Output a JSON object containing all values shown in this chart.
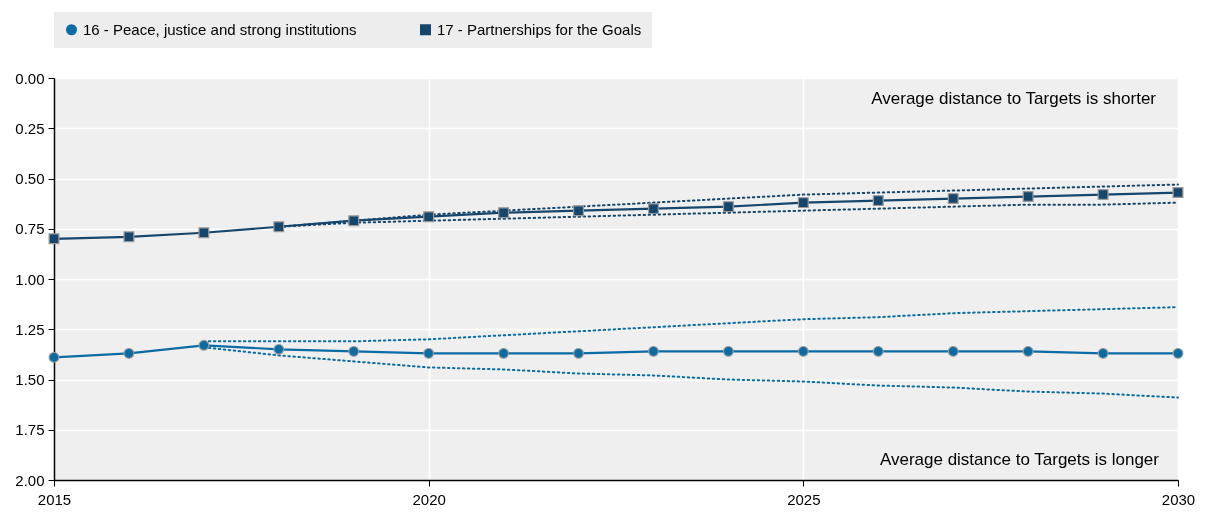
{
  "chart_data": {
    "type": "line",
    "x": [
      2015,
      2016,
      2017,
      2018,
      2019,
      2020,
      2021,
      2022,
      2023,
      2024,
      2025,
      2026,
      2027,
      2028,
      2029,
      2030
    ],
    "series": [
      {
        "name": "16 - Peace, justice and strong institutions",
        "color": "#0b6ba3",
        "marker": "circle",
        "values": [
          1.39,
          1.37,
          1.33,
          1.35,
          1.36,
          1.37,
          1.37,
          1.37,
          1.36,
          1.36,
          1.36,
          1.36,
          1.36,
          1.36,
          1.37,
          1.37
        ]
      },
      {
        "name": "17 - Partnerships for the Goals",
        "color": "#17466d",
        "marker": "square",
        "values": [
          0.8,
          0.79,
          0.77,
          0.74,
          0.71,
          0.69,
          0.67,
          0.66,
          0.65,
          0.64,
          0.62,
          0.61,
          0.6,
          0.59,
          0.58,
          0.57
        ]
      },
      {
        "color": "#0b6ba3",
        "line_style": "dotted",
        "values": [
          null,
          null,
          1.31,
          1.31,
          1.31,
          1.3,
          1.28,
          1.26,
          1.24,
          1.22,
          1.2,
          1.19,
          1.17,
          1.16,
          1.15,
          1.14
        ]
      },
      {
        "color": "#0b6ba3",
        "line_style": "dotted",
        "values": [
          null,
          null,
          1.34,
          1.38,
          1.41,
          1.44,
          1.45,
          1.47,
          1.48,
          1.5,
          1.51,
          1.53,
          1.54,
          1.56,
          1.57,
          1.59
        ]
      },
      {
        "color": "#17466d",
        "line_style": "dotted",
        "values": [
          null,
          null,
          null,
          0.74,
          0.71,
          0.68,
          0.66,
          0.64,
          0.62,
          0.6,
          0.58,
          0.57,
          0.56,
          0.55,
          0.54,
          0.53
        ]
      },
      {
        "color": "#17466d",
        "line_style": "dotted",
        "values": [
          null,
          null,
          null,
          0.74,
          0.72,
          0.71,
          0.7,
          0.69,
          0.68,
          0.67,
          0.66,
          0.65,
          0.64,
          0.63,
          0.63,
          0.62
        ]
      }
    ],
    "xlim": [
      2015,
      2030
    ],
    "xticks": [
      2015,
      2020,
      2025,
      2030
    ],
    "ylim": [
      2,
      0
    ],
    "yticks": [
      {
        "value": 0,
        "label": "0.00"
      },
      {
        "value": 0.25,
        "label": "0.25"
      },
      {
        "value": 0.5,
        "label": "0.50"
      },
      {
        "value": 0.75,
        "label": "0.75"
      },
      {
        "value": 1,
        "label": "1.00"
      },
      {
        "value": 1.25,
        "label": "1.25"
      },
      {
        "value": 1.5,
        "label": "1.50"
      },
      {
        "value": 1.75,
        "label": "1.75"
      },
      {
        "value": 2,
        "label": "2.00"
      }
    ],
    "annotations": [
      "Average distance to Targets is shorter",
      "Average distance to Targets is longer"
    ],
    "grid": true,
    "legend": "top",
    "line_style": "solid"
  }
}
